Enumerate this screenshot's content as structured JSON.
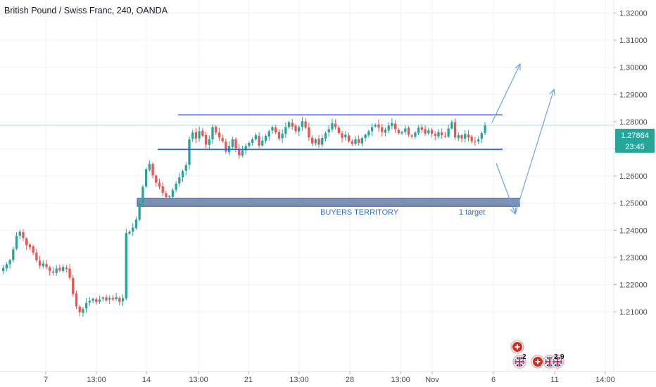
{
  "header": {
    "title": "British Pound / Swiss Franc, 240, OANDA"
  },
  "price_axis": {
    "current_price": "1.27864",
    "countdown": "23:45"
  },
  "annotations": {
    "buyers_zone": "BUYERS TERRITORY",
    "target": "1 target"
  },
  "events": {
    "badge_1": "2",
    "badge_2": "2",
    "badge_3": "9"
  },
  "colors": {
    "up": "#26a69a",
    "down": "#ef5350",
    "channel": "#2962ff",
    "zone_fill": "#7d8fb3",
    "projection": "#6ba3e6",
    "price_line": "#a8e0d8",
    "tag_bg": "#26a69a"
  },
  "chart_data": {
    "type": "candlestick",
    "symbol": "GBP/CHF",
    "timeframe": "240",
    "y_range": [
      1.2,
      1.325
    ],
    "y_ticks": [
      "1.32000",
      "1.31000",
      "1.30000",
      "1.29000",
      "1.28000",
      "1.27000",
      "1.26000",
      "1.25000",
      "1.24000",
      "1.23000",
      "1.22000",
      "1.21000"
    ],
    "x_ticks": [
      "7",
      "13:00",
      "14",
      "13:00",
      "21",
      "13:00",
      "28",
      "13:00",
      "Nov",
      "6",
      "11",
      "14:00"
    ],
    "close_series": [
      1.2262,
      1.2275,
      1.229,
      1.233,
      1.238,
      1.2395,
      1.2372,
      1.2345,
      1.2338,
      1.2318,
      1.229,
      1.227,
      1.2278,
      1.2265,
      1.225,
      1.2244,
      1.226,
      1.2252,
      1.2265,
      1.2258,
      1.2225,
      1.2165,
      1.212,
      1.2098,
      1.211,
      1.2132,
      1.214,
      1.2148,
      1.2136,
      1.2145,
      1.2153,
      1.2142,
      1.215,
      1.2145,
      1.2154,
      1.2137,
      1.215,
      1.239,
      1.2395,
      1.241,
      1.244,
      1.25,
      1.256,
      1.2625,
      1.2645,
      1.2602,
      1.2575,
      1.256,
      1.2538,
      1.2522,
      1.2525,
      1.2548,
      1.2572,
      1.2595,
      1.2618,
      1.264,
      1.2735,
      1.276,
      1.2738,
      1.2765,
      1.2748,
      1.2715,
      1.2735,
      1.278,
      1.276,
      1.2742,
      1.2728,
      1.269,
      1.271,
      1.2735,
      1.2702,
      1.2676,
      1.2695,
      1.271,
      1.2722,
      1.2735,
      1.275,
      1.2712,
      1.273,
      1.2748,
      1.2765,
      1.278,
      1.276,
      1.2738,
      1.2756,
      1.278,
      1.2798,
      1.2782,
      1.2765,
      1.278,
      1.2802,
      1.2778,
      1.2742,
      1.272,
      1.2735,
      1.2715,
      1.274,
      1.2758,
      1.2772,
      1.2795,
      1.278,
      1.2758,
      1.274,
      1.2752,
      1.2728,
      1.2718,
      1.2735,
      1.2722,
      1.274,
      1.2752,
      1.2765,
      1.278,
      1.2788,
      1.2778,
      1.2762,
      1.277,
      1.2785,
      1.2795,
      1.2772,
      1.2758,
      1.2762,
      1.2775,
      1.2752,
      1.2745,
      1.276,
      1.2778,
      1.277,
      1.2756,
      1.2768,
      1.2755,
      1.2748,
      1.2762,
      1.275,
      1.2745,
      1.2775,
      1.2798,
      1.2742,
      1.275,
      1.2738,
      1.2755,
      1.2742,
      1.2728,
      1.2725,
      1.2735,
      1.2758,
      1.2786
    ],
    "channel_top": 1.2825,
    "channel_bottom": 1.2698,
    "buyers_zone": [
      1.2488,
      1.2518
    ],
    "current_price": 1.27864
  }
}
